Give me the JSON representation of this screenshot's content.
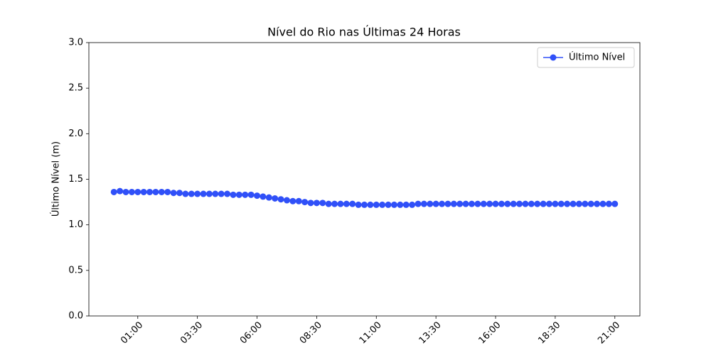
{
  "chart_data": {
    "type": "line",
    "title": "Nível do Rio nas Últimas 24 Horas",
    "ylabel": "Último Nível (m)",
    "x": [
      "00:00",
      "00:15",
      "00:30",
      "00:45",
      "01:00",
      "01:15",
      "01:30",
      "01:45",
      "02:00",
      "02:15",
      "02:30",
      "02:45",
      "03:00",
      "03:15",
      "03:30",
      "03:45",
      "04:00",
      "04:15",
      "04:30",
      "04:45",
      "05:00",
      "05:15",
      "05:30",
      "05:45",
      "06:00",
      "06:15",
      "06:30",
      "06:45",
      "07:00",
      "07:15",
      "07:30",
      "07:45",
      "08:00",
      "08:15",
      "08:30",
      "08:45",
      "09:00",
      "09:15",
      "09:30",
      "09:45",
      "10:00",
      "10:15",
      "10:30",
      "10:45",
      "11:00",
      "11:15",
      "11:30",
      "11:45",
      "12:00",
      "12:15",
      "12:30",
      "12:45",
      "13:00",
      "13:15",
      "13:30",
      "13:45",
      "14:00",
      "14:15",
      "14:30",
      "14:45",
      "15:00",
      "15:15",
      "15:30",
      "15:45",
      "16:00",
      "16:15",
      "16:30",
      "16:45",
      "17:00",
      "17:15",
      "17:30",
      "17:45",
      "18:00",
      "18:15",
      "18:30",
      "18:45",
      "19:00",
      "19:15",
      "19:30",
      "19:45",
      "20:00",
      "20:15",
      "20:30",
      "20:45",
      "21:00"
    ],
    "series": [
      {
        "name": "Último Nível",
        "color": "#3050f8",
        "values": [
          1.36,
          1.37,
          1.36,
          1.36,
          1.36,
          1.36,
          1.36,
          1.36,
          1.36,
          1.36,
          1.35,
          1.35,
          1.34,
          1.34,
          1.34,
          1.34,
          1.34,
          1.34,
          1.34,
          1.34,
          1.33,
          1.33,
          1.33,
          1.33,
          1.32,
          1.31,
          1.3,
          1.29,
          1.28,
          1.27,
          1.26,
          1.26,
          1.25,
          1.24,
          1.24,
          1.24,
          1.23,
          1.23,
          1.23,
          1.23,
          1.23,
          1.22,
          1.22,
          1.22,
          1.22,
          1.22,
          1.22,
          1.22,
          1.22,
          1.22,
          1.22,
          1.23,
          1.23,
          1.23,
          1.23,
          1.23,
          1.23,
          1.23,
          1.23,
          1.23,
          1.23,
          1.23,
          1.23,
          1.23,
          1.23,
          1.23,
          1.23,
          1.23,
          1.23,
          1.23,
          1.23,
          1.23,
          1.23,
          1.23,
          1.23,
          1.23,
          1.23,
          1.23,
          1.23,
          1.23,
          1.23,
          1.23,
          1.23,
          1.23,
          1.23
        ]
      }
    ],
    "xticks": [
      "01:00",
      "03:30",
      "06:00",
      "08:30",
      "11:00",
      "13:30",
      "16:00",
      "18:30",
      "21:00"
    ],
    "ylim": [
      0,
      3
    ],
    "yticks": [
      {
        "value": 0,
        "label": "0.0"
      },
      0.5,
      {
        "value": 1,
        "label": "1.0"
      },
      1.5,
      {
        "value": 2,
        "label": "2.0"
      },
      2.5,
      {
        "value": 3,
        "label": "3.0"
      }
    ],
    "legend": "upper right"
  }
}
